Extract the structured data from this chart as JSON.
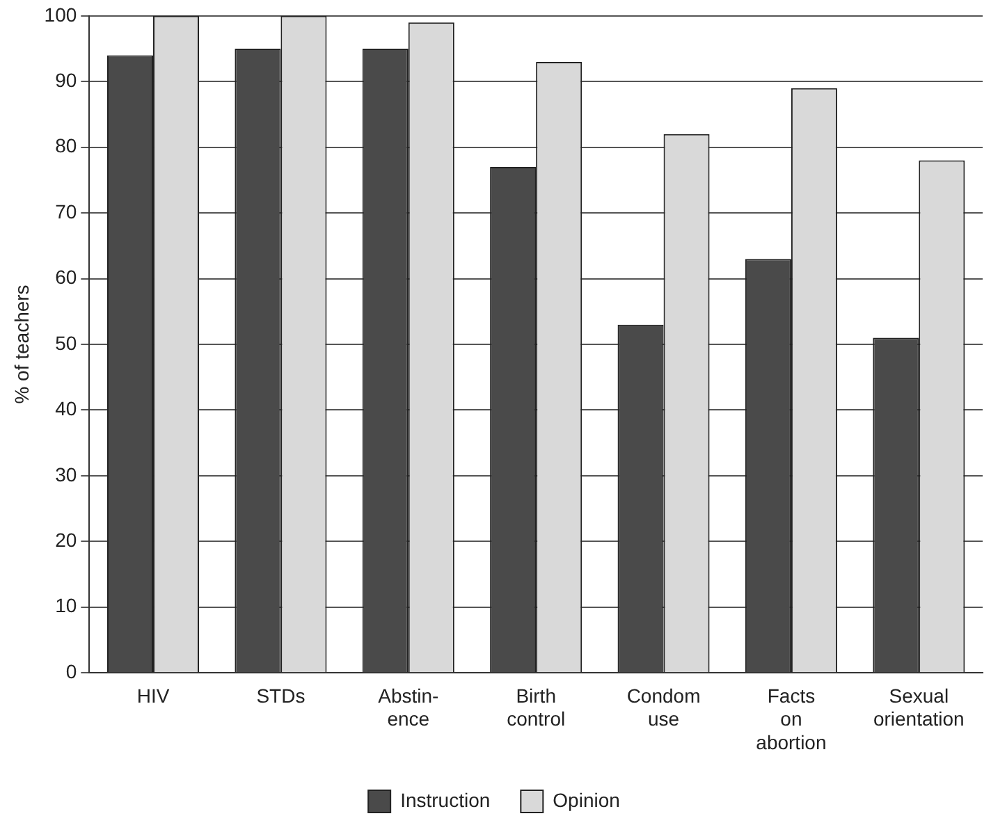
{
  "chart_data": {
    "type": "bar",
    "ylabel": "% of teachers",
    "categories": [
      "HIV",
      "STDs",
      "Abstin-\nence",
      "Birth\ncontrol",
      "Condom\nuse",
      "Facts\non\nabortion",
      "Sexual\norientation"
    ],
    "series": [
      {
        "name": "Instruction",
        "color": "#4a4a4a",
        "values": [
          94,
          95,
          95,
          77,
          53,
          63,
          51
        ]
      },
      {
        "name": "Opinion",
        "color": "#d9d9d9",
        "values": [
          100,
          100,
          99,
          93,
          82,
          89,
          78
        ]
      }
    ],
    "ylim": [
      0,
      100
    ],
    "yticks": [
      0,
      10,
      20,
      30,
      40,
      50,
      60,
      70,
      80,
      90,
      100
    ],
    "grid": "y",
    "legend": "bottom"
  }
}
